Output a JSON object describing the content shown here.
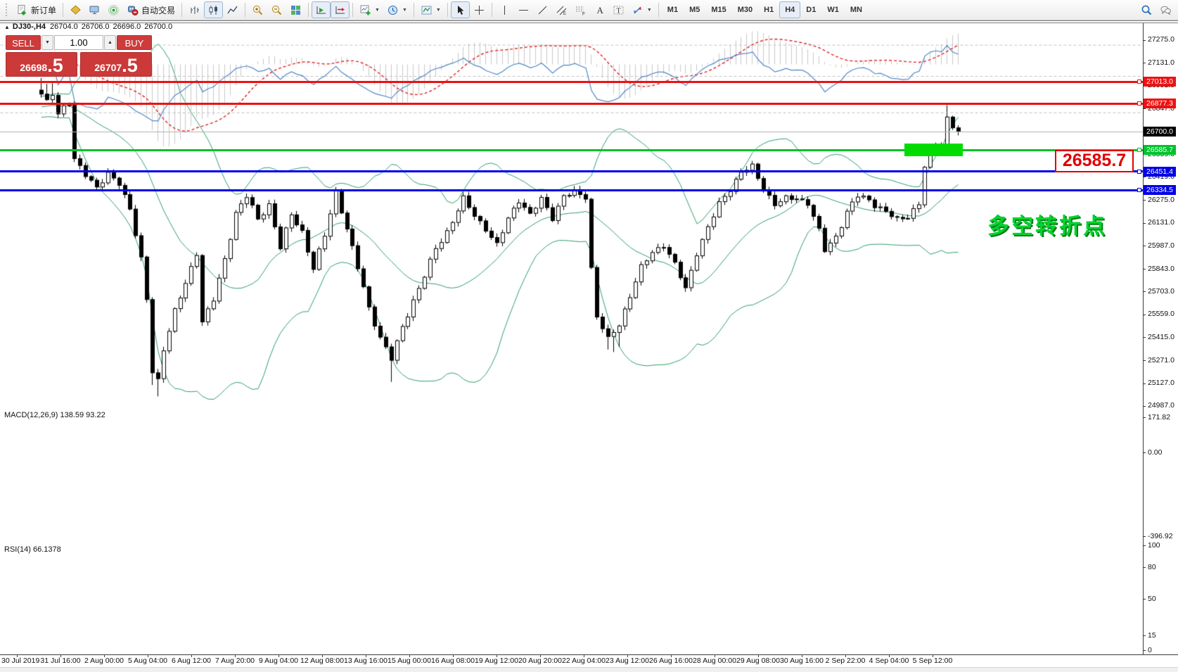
{
  "toolbar": {
    "new_order_label": "新订单",
    "autotrading_label": "自动交易",
    "timeframes": [
      "M1",
      "M5",
      "M15",
      "M30",
      "H1",
      "H4",
      "D1",
      "W1",
      "MN"
    ],
    "active_timeframe": "H4",
    "icons": [
      "new-order",
      "chart-profile",
      "terminal",
      "signal",
      "autotrading-robot",
      "bar-chart",
      "candlestick-chart",
      "line-chart",
      "zoom-in",
      "zoom-out",
      "tile-windows",
      "auto-scroll",
      "chart-shift",
      "indicators-add",
      "periods-clock",
      "templates",
      "cursor",
      "crosshair",
      "vertical-line",
      "horizontal-line",
      "trendline",
      "equidistant-channel",
      "fibonacci",
      "text",
      "text-label",
      "arrow-objects",
      "search",
      "chat"
    ]
  },
  "chart": {
    "header": {
      "symbol_period": "DJ30-,H4",
      "open": "26704.0",
      "high": "26706.0",
      "low": "26696.0",
      "close": "26700.0"
    },
    "one_click": {
      "sell_label": "SELL",
      "buy_label": "BUY",
      "volume": "1.00",
      "sell_price_main": "26698",
      "sell_price_pips": ".5",
      "buy_price_main": "26707",
      "buy_price_pips": ".5",
      "down_arrow": "▼",
      "up_arrow": "▲"
    },
    "collapse_arrow": "▲",
    "price_axis_ticks": [
      27275.0,
      27131.0,
      26991.0,
      26847.0,
      26703.0,
      26559.0,
      26419.0,
      26275.0,
      26131.0,
      25987.0,
      25843.0,
      25703.0,
      25559.0,
      25415.0,
      25271.0,
      25127.0,
      24987.0
    ],
    "levels": [
      {
        "label": "27013.0",
        "price": 27013.0,
        "color": "#ee1111",
        "thickness": 3
      },
      {
        "label": "26877.3",
        "price": 26877.3,
        "color": "#ee1111",
        "thickness": 3
      },
      {
        "label": "26585.7",
        "price": 26585.7,
        "color": "#00c32c",
        "thickness": 3
      },
      {
        "label": "26451.4",
        "price": 26451.4,
        "color": "#0000e6",
        "thickness": 3
      },
      {
        "label": "26334.5",
        "price": 26334.5,
        "color": "#0000e6",
        "thickness": 3
      }
    ],
    "current_price": {
      "label": "26700.0",
      "price": 26700.0,
      "line_color": "#b4b4b4",
      "tag_color": "#000000"
    },
    "highlight_box": {
      "price": 26585.7,
      "from_candle": 156,
      "to_candle": 166,
      "color": "#00dc00",
      "height": 18
    },
    "callout": {
      "text": "26585.7"
    },
    "annotation": {
      "text": "多空转折点"
    },
    "time_labels": [
      "30 Jul 2019",
      "31 Jul 16:00",
      "2 Aug 00:00",
      "5 Aug 04:00",
      "6 Aug 12:00",
      "7 Aug 20:00",
      "9 Aug 04:00",
      "12 Aug 08:00",
      "13 Aug 16:00",
      "15 Aug 00:00",
      "16 Aug 08:00",
      "19 Aug 12:00",
      "20 Aug 20:00",
      "22 Aug 04:00",
      "23 Aug 12:00",
      "26 Aug 16:00",
      "28 Aug 00:00",
      "29 Aug 08:00",
      "30 Aug 16:00",
      "2 Sep 22:00",
      "4 Sep 04:00",
      "5 Sep 12:00"
    ]
  },
  "indicators": {
    "macd": {
      "label": "MACD(12,26,9) 138.59 93.22",
      "fast": 12,
      "slow": 26,
      "signal": 9,
      "value": "138.59",
      "signal_value": "93.22",
      "axis": [
        "171.82",
        "0.00",
        "-396.92"
      ],
      "axis_max": 171.82,
      "axis_min": -396.92,
      "histogram_color": "#c9c9c9",
      "signal_color": "#e02020"
    },
    "rsi": {
      "label": "RSI(14) 66.1378",
      "period": 14,
      "value": "66.1378",
      "axis": [
        "100",
        "80",
        "50",
        "15",
        "0"
      ],
      "levels": [
        80,
        50,
        15
      ],
      "line_color": "#4f87c8",
      "level_color": "#c0c0c0"
    }
  },
  "chart_data": {
    "type": "candlestick",
    "symbol": "DJ30-",
    "period": "H4",
    "num_candles": 166,
    "price_range": {
      "top_tick": 27275.0,
      "bottom_tick": 24987.0
    },
    "bollinger": {
      "period": 20,
      "deviation": 2,
      "color": "#2E9E68"
    },
    "price_keypoints": [
      [
        0,
        26930
      ],
      [
        1,
        26890
      ],
      [
        2,
        26950
      ],
      [
        3,
        26820
      ],
      [
        4,
        26860
      ],
      [
        5,
        26880
      ],
      [
        6,
        26520
      ],
      [
        8,
        26440
      ],
      [
        10,
        26360
      ],
      [
        12,
        26430
      ],
      [
        14,
        26380
      ],
      [
        16,
        26230
      ],
      [
        18,
        25900
      ],
      [
        19,
        25650
      ],
      [
        20,
        25200
      ],
      [
        21,
        25150
      ],
      [
        22,
        25350
      ],
      [
        24,
        25580
      ],
      [
        26,
        25750
      ],
      [
        28,
        25950
      ],
      [
        29,
        25520
      ],
      [
        31,
        25650
      ],
      [
        33,
        25900
      ],
      [
        35,
        26200
      ],
      [
        37,
        26300
      ],
      [
        39,
        26150
      ],
      [
        41,
        26250
      ],
      [
        43,
        25980
      ],
      [
        45,
        26180
      ],
      [
        47,
        26080
      ],
      [
        49,
        25850
      ],
      [
        51,
        26050
      ],
      [
        53,
        26330
      ],
      [
        55,
        26100
      ],
      [
        57,
        25850
      ],
      [
        59,
        25600
      ],
      [
        61,
        25420
      ],
      [
        63,
        25280
      ],
      [
        65,
        25480
      ],
      [
        67,
        25650
      ],
      [
        69,
        25800
      ],
      [
        71,
        25970
      ],
      [
        73,
        26080
      ],
      [
        76,
        26280
      ],
      [
        78,
        26180
      ],
      [
        80,
        26100
      ],
      [
        82,
        25990
      ],
      [
        84,
        26160
      ],
      [
        86,
        26280
      ],
      [
        88,
        26180
      ],
      [
        90,
        26280
      ],
      [
        92,
        26170
      ],
      [
        94,
        26300
      ],
      [
        96,
        26320
      ],
      [
        98,
        26300
      ],
      [
        99,
        25850
      ],
      [
        100,
        25550
      ],
      [
        102,
        25400
      ],
      [
        104,
        25500
      ],
      [
        106,
        25680
      ],
      [
        108,
        25850
      ],
      [
        110,
        25950
      ],
      [
        112,
        26000
      ],
      [
        114,
        25870
      ],
      [
        116,
        25720
      ],
      [
        118,
        25950
      ],
      [
        120,
        26100
      ],
      [
        122,
        26250
      ],
      [
        124,
        26350
      ],
      [
        126,
        26450
      ],
      [
        128,
        26480
      ],
      [
        130,
        26350
      ],
      [
        132,
        26250
      ],
      [
        134,
        26280
      ],
      [
        136,
        26290
      ],
      [
        138,
        26260
      ],
      [
        140,
        26080
      ],
      [
        141,
        25960
      ],
      [
        143,
        26050
      ],
      [
        145,
        26200
      ],
      [
        147,
        26300
      ],
      [
        149,
        26280
      ],
      [
        150,
        26250
      ],
      [
        152,
        26200
      ],
      [
        154,
        26150
      ],
      [
        156,
        26180
      ],
      [
        158,
        26250
      ],
      [
        159,
        26480
      ],
      [
        160,
        26560
      ],
      [
        161,
        26620
      ],
      [
        162,
        26615
      ],
      [
        163,
        26790
      ],
      [
        164,
        26740
      ],
      [
        165,
        26700
      ]
    ],
    "wick_extensions_low": {
      "20": 70,
      "21": 90,
      "63": 110,
      "102": 60,
      "103": 90,
      "104": 70
    },
    "wick_extensions_high": {
      "0": 60,
      "1": 40,
      "2": 50,
      "163": 55
    }
  }
}
